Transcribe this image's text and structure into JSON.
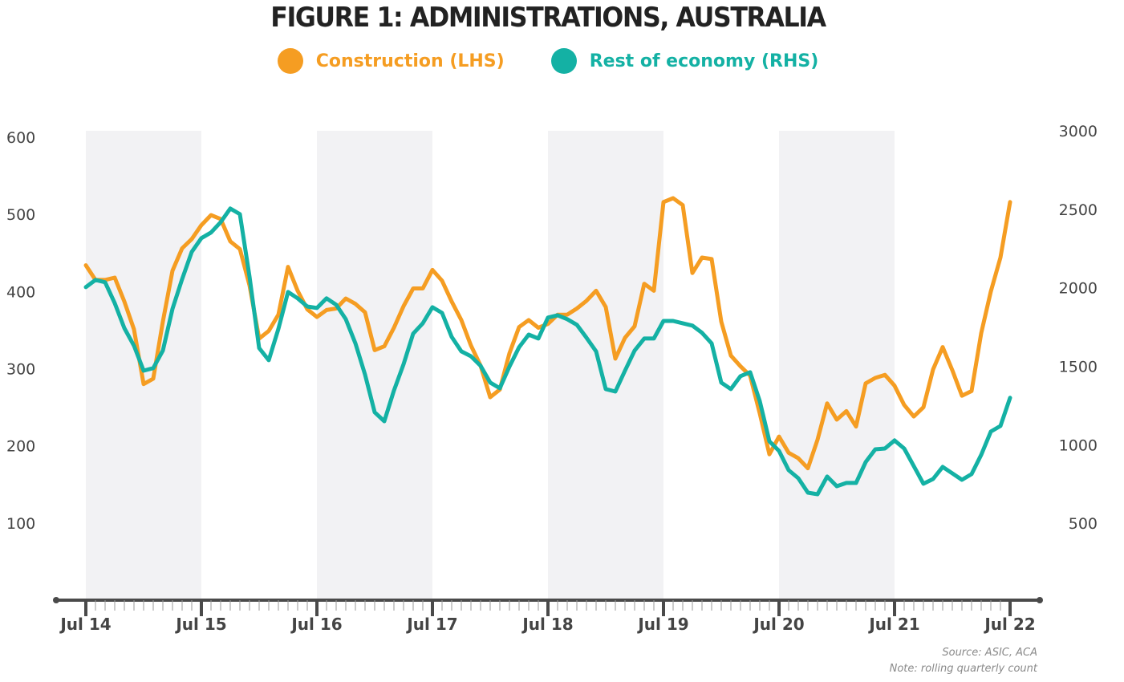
{
  "chart_data": {
    "type": "line",
    "title": "FIGURE 1: ADMINISTRATIONS, AUSTRALIA",
    "xlabel": "",
    "ylabel_left": "",
    "ylabel_right": "",
    "x_tick_labels": [
      "Jul 14",
      "Jul 15",
      "Jul 16",
      "Jul 17",
      "Jul 18",
      "Jul 19",
      "Jul 20",
      "Jul 21",
      "Jul 22"
    ],
    "x_range_months": [
      0,
      96
    ],
    "points_per_year": 12,
    "y_left": {
      "ticks": [
        100,
        200,
        300,
        400,
        500,
        600
      ],
      "range": [
        0,
        600
      ]
    },
    "y_right": {
      "ticks": [
        500,
        1000,
        1500,
        2000,
        2500,
        3000
      ],
      "range": [
        0,
        3000
      ]
    },
    "shaded_periods": [
      {
        "from": "Jul 14",
        "to": "Jul 15"
      },
      {
        "from": "Jul 16",
        "to": "Jul 17"
      },
      {
        "from": "Jul 18",
        "to": "Jul 19"
      },
      {
        "from": "Jul 20",
        "to": "Jul 21"
      }
    ],
    "legend_position": "top-center",
    "grid": false,
    "series": [
      {
        "name": "Construction (LHS)",
        "axis": "left",
        "color": "#F59D22",
        "values": [
          434,
          415,
          415,
          418,
          387,
          351,
          280,
          287,
          361,
          427,
          456,
          468,
          486,
          499,
          494,
          465,
          455,
          408,
          339,
          349,
          370,
          432,
          401,
          377,
          367,
          376,
          378,
          391,
          384,
          373,
          324,
          329,
          353,
          381,
          404,
          404,
          428,
          414,
          387,
          363,
          330,
          304,
          263,
          273,
          320,
          354,
          363,
          353,
          358,
          370,
          370,
          378,
          388,
          401,
          380,
          313,
          340,
          355,
          410,
          401,
          516,
          521,
          512,
          424,
          444,
          442,
          361,
          317,
          303,
          291,
          242,
          189,
          212,
          191,
          184,
          171,
          208,
          255,
          234,
          245,
          225,
          281,
          288,
          292,
          278,
          253,
          238,
          250,
          299,
          328,
          298,
          265,
          271,
          346,
          400,
          444,
          516
        ]
      },
      {
        "name": "Rest of economy (RHS)",
        "axis": "right",
        "color": "#14B1A4",
        "values": [
          2004,
          2050,
          2035,
          1902,
          1743,
          1631,
          1472,
          1488,
          1600,
          1866,
          2055,
          2229,
          2316,
          2352,
          2418,
          2505,
          2469,
          2071,
          1616,
          1539,
          1738,
          1973,
          1933,
          1881,
          1871,
          1933,
          1892,
          1800,
          1646,
          1447,
          1207,
          1150,
          1345,
          1513,
          1708,
          1774,
          1876,
          1840,
          1687,
          1595,
          1564,
          1503,
          1396,
          1360,
          1498,
          1621,
          1702,
          1677,
          1810,
          1825,
          1800,
          1764,
          1682,
          1595,
          1355,
          1339,
          1472,
          1600,
          1677,
          1677,
          1789,
          1789,
          1774,
          1759,
          1713,
          1646,
          1396,
          1355,
          1437,
          1462,
          1278,
          1022,
          961,
          838,
          787,
          695,
          685,
          798,
          736,
          757,
          757,
          890,
          971,
          976,
          1028,
          976,
          864,
          752,
          782,
          859,
          818,
          777,
          813,
          936,
          1084,
          1120,
          1299
        ]
      }
    ],
    "notes": [
      "Source: ASIC, ACA",
      "Note: rolling quarterly count"
    ]
  },
  "legend": {
    "items": [
      {
        "label": "Construction (LHS)",
        "color": "#F59D22"
      },
      {
        "label": "Rest of economy (RHS)",
        "color": "#14B1A4"
      }
    ]
  },
  "footer": {
    "source": "Source: ASIC, ACA",
    "note": "Note: rolling quarterly count"
  },
  "colors": {
    "shade": "#F2F2F4",
    "axis": "#4A4A4A",
    "text": "#444444",
    "title": "#222222"
  }
}
